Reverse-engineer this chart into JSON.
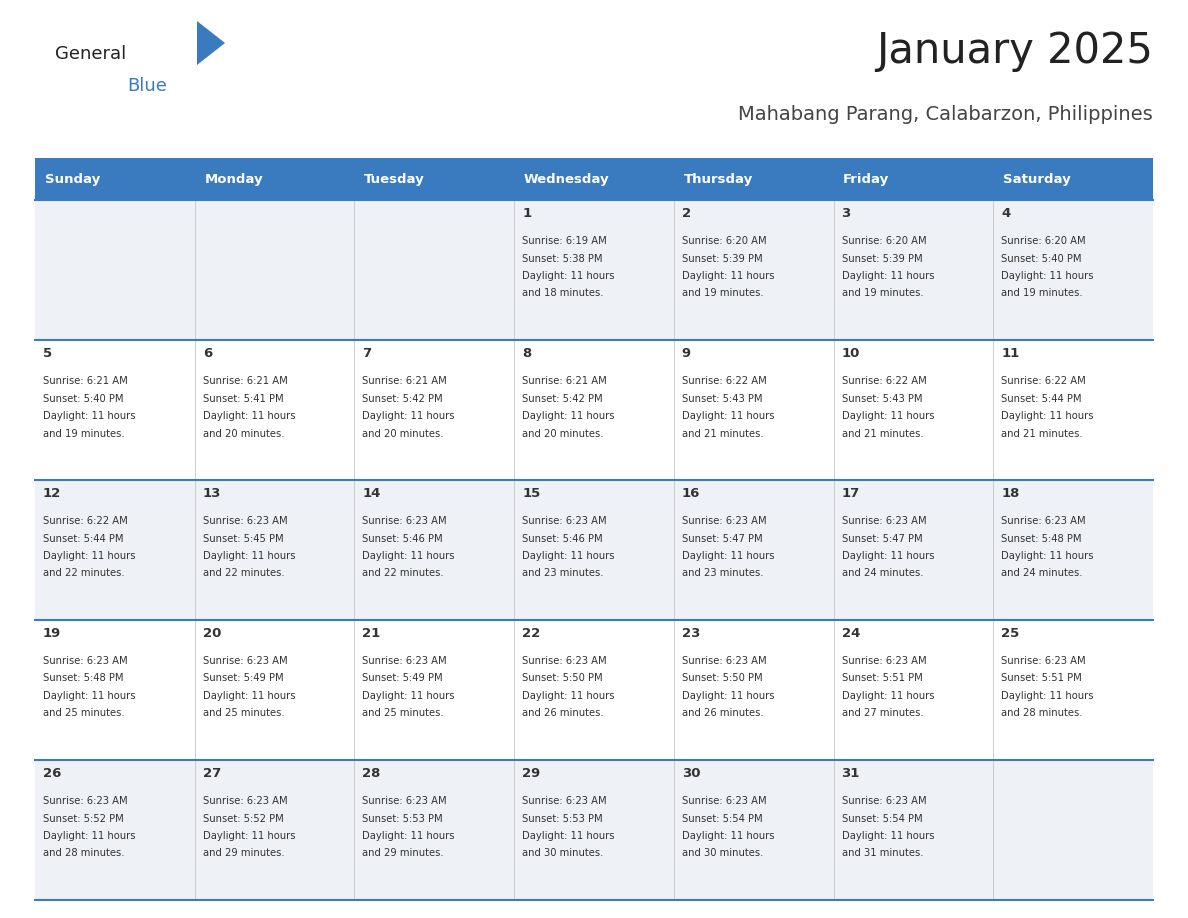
{
  "title": "January 2025",
  "subtitle": "Mahabang Parang, Calabarzon, Philippines",
  "header_color": "#3a7bbf",
  "header_text_color": "#ffffff",
  "cell_bg_even": "#eef2f7",
  "cell_bg_odd": "#ffffff",
  "border_color": "#3a7bbf",
  "title_color": "#222222",
  "subtitle_color": "#444444",
  "text_color": "#333333",
  "days_of_week": [
    "Sunday",
    "Monday",
    "Tuesday",
    "Wednesday",
    "Thursday",
    "Friday",
    "Saturday"
  ],
  "calendar": [
    [
      "",
      "",
      "",
      "1",
      "2",
      "3",
      "4"
    ],
    [
      "5",
      "6",
      "7",
      "8",
      "9",
      "10",
      "11"
    ],
    [
      "12",
      "13",
      "14",
      "15",
      "16",
      "17",
      "18"
    ],
    [
      "19",
      "20",
      "21",
      "22",
      "23",
      "24",
      "25"
    ],
    [
      "26",
      "27",
      "28",
      "29",
      "30",
      "31",
      ""
    ]
  ],
  "cell_data": {
    "1": {
      "sunrise": "6:19 AM",
      "sunset": "5:38 PM",
      "daylight": "11 hours",
      "daylight2": "and 18 minutes."
    },
    "2": {
      "sunrise": "6:20 AM",
      "sunset": "5:39 PM",
      "daylight": "11 hours",
      "daylight2": "and 19 minutes."
    },
    "3": {
      "sunrise": "6:20 AM",
      "sunset": "5:39 PM",
      "daylight": "11 hours",
      "daylight2": "and 19 minutes."
    },
    "4": {
      "sunrise": "6:20 AM",
      "sunset": "5:40 PM",
      "daylight": "11 hours",
      "daylight2": "and 19 minutes."
    },
    "5": {
      "sunrise": "6:21 AM",
      "sunset": "5:40 PM",
      "daylight": "11 hours",
      "daylight2": "and 19 minutes."
    },
    "6": {
      "sunrise": "6:21 AM",
      "sunset": "5:41 PM",
      "daylight": "11 hours",
      "daylight2": "and 20 minutes."
    },
    "7": {
      "sunrise": "6:21 AM",
      "sunset": "5:42 PM",
      "daylight": "11 hours",
      "daylight2": "and 20 minutes."
    },
    "8": {
      "sunrise": "6:21 AM",
      "sunset": "5:42 PM",
      "daylight": "11 hours",
      "daylight2": "and 20 minutes."
    },
    "9": {
      "sunrise": "6:22 AM",
      "sunset": "5:43 PM",
      "daylight": "11 hours",
      "daylight2": "and 21 minutes."
    },
    "10": {
      "sunrise": "6:22 AM",
      "sunset": "5:43 PM",
      "daylight": "11 hours",
      "daylight2": "and 21 minutes."
    },
    "11": {
      "sunrise": "6:22 AM",
      "sunset": "5:44 PM",
      "daylight": "11 hours",
      "daylight2": "and 21 minutes."
    },
    "12": {
      "sunrise": "6:22 AM",
      "sunset": "5:44 PM",
      "daylight": "11 hours",
      "daylight2": "and 22 minutes."
    },
    "13": {
      "sunrise": "6:23 AM",
      "sunset": "5:45 PM",
      "daylight": "11 hours",
      "daylight2": "and 22 minutes."
    },
    "14": {
      "sunrise": "6:23 AM",
      "sunset": "5:46 PM",
      "daylight": "11 hours",
      "daylight2": "and 22 minutes."
    },
    "15": {
      "sunrise": "6:23 AM",
      "sunset": "5:46 PM",
      "daylight": "11 hours",
      "daylight2": "and 23 minutes."
    },
    "16": {
      "sunrise": "6:23 AM",
      "sunset": "5:47 PM",
      "daylight": "11 hours",
      "daylight2": "and 23 minutes."
    },
    "17": {
      "sunrise": "6:23 AM",
      "sunset": "5:47 PM",
      "daylight": "11 hours",
      "daylight2": "and 24 minutes."
    },
    "18": {
      "sunrise": "6:23 AM",
      "sunset": "5:48 PM",
      "daylight": "11 hours",
      "daylight2": "and 24 minutes."
    },
    "19": {
      "sunrise": "6:23 AM",
      "sunset": "5:48 PM",
      "daylight": "11 hours",
      "daylight2": "and 25 minutes."
    },
    "20": {
      "sunrise": "6:23 AM",
      "sunset": "5:49 PM",
      "daylight": "11 hours",
      "daylight2": "and 25 minutes."
    },
    "21": {
      "sunrise": "6:23 AM",
      "sunset": "5:49 PM",
      "daylight": "11 hours",
      "daylight2": "and 25 minutes."
    },
    "22": {
      "sunrise": "6:23 AM",
      "sunset": "5:50 PM",
      "daylight": "11 hours",
      "daylight2": "and 26 minutes."
    },
    "23": {
      "sunrise": "6:23 AM",
      "sunset": "5:50 PM",
      "daylight": "11 hours",
      "daylight2": "and 26 minutes."
    },
    "24": {
      "sunrise": "6:23 AM",
      "sunset": "5:51 PM",
      "daylight": "11 hours",
      "daylight2": "and 27 minutes."
    },
    "25": {
      "sunrise": "6:23 AM",
      "sunset": "5:51 PM",
      "daylight": "11 hours",
      "daylight2": "and 28 minutes."
    },
    "26": {
      "sunrise": "6:23 AM",
      "sunset": "5:52 PM",
      "daylight": "11 hours",
      "daylight2": "and 28 minutes."
    },
    "27": {
      "sunrise": "6:23 AM",
      "sunset": "5:52 PM",
      "daylight": "11 hours",
      "daylight2": "and 29 minutes."
    },
    "28": {
      "sunrise": "6:23 AM",
      "sunset": "5:53 PM",
      "daylight": "11 hours",
      "daylight2": "and 29 minutes."
    },
    "29": {
      "sunrise": "6:23 AM",
      "sunset": "5:53 PM",
      "daylight": "11 hours",
      "daylight2": "and 30 minutes."
    },
    "30": {
      "sunrise": "6:23 AM",
      "sunset": "5:54 PM",
      "daylight": "11 hours",
      "daylight2": "and 30 minutes."
    },
    "31": {
      "sunrise": "6:23 AM",
      "sunset": "5:54 PM",
      "daylight": "11 hours",
      "daylight2": "and 31 minutes."
    }
  }
}
